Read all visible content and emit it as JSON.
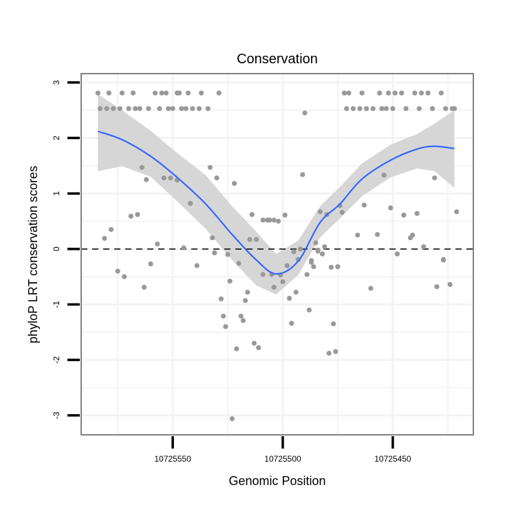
{
  "chart_data": {
    "type": "scatter",
    "title": "Conservation",
    "xlabel": "Genomic Position",
    "ylabel": "phyloP LRT conservation scores",
    "x_reversed": true,
    "xlim": [
      10725591.6,
      10725413.4
    ],
    "ylim": [
      -3.35,
      3.16
    ],
    "x_ticks": [
      10725550,
      10725500,
      10725450
    ],
    "x_tick_labels": [
      "10725550",
      "10725500",
      "10725450"
    ],
    "y_ticks": [
      3,
      2,
      1,
      0,
      -1,
      -2,
      -3
    ],
    "y_tick_labels": [
      "3",
      "2",
      "1",
      "0",
      "-1",
      "-2",
      "-3"
    ],
    "grid": true,
    "reference_line": {
      "y": 0,
      "style": "dashed"
    },
    "colors": {
      "points": "#999999",
      "smooth": "#3366FF",
      "ribbon": "#D6D6D6",
      "panel_border": "#808080",
      "grid": "#F3F3F3"
    },
    "points": [
      [
        10725584,
        2.81
      ],
      [
        10725579,
        2.81
      ],
      [
        10725573,
        2.81
      ],
      [
        10725568,
        2.81
      ],
      [
        10725558,
        2.81
      ],
      [
        10725555,
        2.81
      ],
      [
        10725553,
        2.81
      ],
      [
        10725548,
        2.81
      ],
      [
        10725547,
        2.81
      ],
      [
        10725543,
        2.81
      ],
      [
        10725537,
        2.81
      ],
      [
        10725529,
        2.81
      ],
      [
        10725472,
        2.81
      ],
      [
        10725470,
        2.81
      ],
      [
        10725464,
        2.81
      ],
      [
        10725456,
        2.81
      ],
      [
        10725452,
        2.81
      ],
      [
        10725449,
        2.81
      ],
      [
        10725446,
        2.81
      ],
      [
        10725440,
        2.81
      ],
      [
        10725437,
        2.81
      ],
      [
        10725434,
        2.81
      ],
      [
        10725428,
        2.81
      ],
      [
        10725583,
        2.53
      ],
      [
        10725580,
        2.53
      ],
      [
        10725577,
        2.53
      ],
      [
        10725574,
        2.53
      ],
      [
        10725570,
        2.53
      ],
      [
        10725567,
        2.53
      ],
      [
        10725565,
        2.53
      ],
      [
        10725561,
        2.53
      ],
      [
        10725556,
        2.53
      ],
      [
        10725552,
        2.53
      ],
      [
        10725550,
        2.53
      ],
      [
        10725546,
        2.53
      ],
      [
        10725544,
        2.53
      ],
      [
        10725541,
        2.53
      ],
      [
        10725538,
        2.53
      ],
      [
        10725534,
        2.53
      ],
      [
        10725471,
        2.53
      ],
      [
        10725468,
        2.53
      ],
      [
        10725465,
        2.53
      ],
      [
        10725462,
        2.53
      ],
      [
        10725459,
        2.53
      ],
      [
        10725455,
        2.53
      ],
      [
        10725453,
        2.53
      ],
      [
        10725450,
        2.53
      ],
      [
        10725444,
        2.53
      ],
      [
        10725438,
        2.53
      ],
      [
        10725432,
        2.53
      ],
      [
        10725426,
        2.53
      ],
      [
        10725423,
        2.53
      ],
      [
        10725422,
        2.53
      ],
      [
        10725564,
        1.47
      ],
      [
        10725562,
        1.25
      ],
      [
        10725554,
        1.28
      ],
      [
        10725551,
        1.28
      ],
      [
        10725548,
        1.24
      ],
      [
        10725533,
        1.47
      ],
      [
        10725530,
        1.28
      ],
      [
        10725522,
        1.18
      ],
      [
        10725542,
        0.82
      ],
      [
        10725569,
        0.59
      ],
      [
        10725566,
        0.62
      ],
      [
        10725578,
        0.35
      ],
      [
        10725581,
        0.19
      ],
      [
        10725557,
        0.09
      ],
      [
        10725545,
        0.02
      ],
      [
        10725532,
        0.2
      ],
      [
        10725531,
        -0.07
      ],
      [
        10725525,
        -0.1
      ],
      [
        10725514,
        0.62
      ],
      [
        10725515,
        0.17
      ],
      [
        10725512,
        0.17
      ],
      [
        10725509,
        0.52
      ],
      [
        10725507,
        0.52
      ],
      [
        10725506,
        0.52
      ],
      [
        10725504,
        0.52
      ],
      [
        10725502,
        0.5
      ],
      [
        10725490,
        2.45
      ],
      [
        10725491,
        1.34
      ],
      [
        10725454,
        1.33
      ],
      [
        10725431,
        1.28
      ],
      [
        10725463,
        0.79
      ],
      [
        10725451,
        0.74
      ],
      [
        10725445,
        0.61
      ],
      [
        10725439,
        0.64
      ],
      [
        10725421,
        0.67
      ],
      [
        10725499,
        0.61
      ],
      [
        10725483,
        0.67
      ],
      [
        10725480,
        0.62
      ],
      [
        10725474,
        0.78
      ],
      [
        10725473,
        0.66
      ],
      [
        10725466,
        0.25
      ],
      [
        10725457,
        0.26
      ],
      [
        10725441,
        0.25
      ],
      [
        10725442,
        0.2
      ],
      [
        10725436,
        0.04
      ],
      [
        10725485,
        0.11
      ],
      [
        10725481,
        0.04
      ],
      [
        10725495,
        -0.05
      ],
      [
        10725492,
        0.0
      ],
      [
        10725484,
        -0.04
      ],
      [
        10725482,
        -0.09
      ],
      [
        10725448,
        -0.09
      ],
      [
        10725427,
        -0.19
      ],
      [
        10725493,
        -0.19
      ],
      [
        10725487,
        -0.21
      ],
      [
        10725575,
        -0.4
      ],
      [
        10725572,
        -0.5
      ],
      [
        10725560,
        -0.27
      ],
      [
        10725563,
        -0.69
      ],
      [
        10725539,
        -0.3
      ],
      [
        10725531,
        -0.07
      ],
      [
        10725520,
        -0.26
      ],
      [
        10725524,
        -0.58
      ],
      [
        10725528,
        -0.9
      ],
      [
        10725527,
        -1.21
      ],
      [
        10725526,
        -1.4
      ],
      [
        10725516,
        -0.78
      ],
      [
        10725517,
        -0.93
      ],
      [
        10725519,
        -1.21
      ],
      [
        10725518,
        -1.29
      ],
      [
        10725521,
        -1.8
      ],
      [
        10725513,
        -1.7
      ],
      [
        10725511,
        -1.78
      ],
      [
        10725523,
        -3.06
      ],
      [
        10725509,
        -0.46
      ],
      [
        10725505,
        -0.46
      ],
      [
        10725501,
        -0.47
      ],
      [
        10725504,
        -0.69
      ],
      [
        10725500,
        -0.59
      ],
      [
        10725498,
        -0.3
      ],
      [
        10725495,
        -0.05
      ],
      [
        10725493,
        -0.19
      ],
      [
        10725497,
        -0.89
      ],
      [
        10725494,
        -0.78
      ],
      [
        10725496,
        -1.34
      ],
      [
        10725489,
        -0.46
      ],
      [
        10725487,
        -0.24
      ],
      [
        10725486,
        -0.32
      ],
      [
        10725488,
        -1.1
      ],
      [
        10725484,
        -0.02
      ],
      [
        10725482,
        -0.09
      ],
      [
        10725478,
        -0.33
      ],
      [
        10725475,
        -0.32
      ],
      [
        10725477,
        -1.35
      ],
      [
        10725479,
        -1.88
      ],
      [
        10725476,
        -1.85
      ],
      [
        10725460,
        -0.71
      ],
      [
        10725448,
        -0.09
      ],
      [
        10725430,
        -0.68
      ],
      [
        10725427,
        -0.2
      ],
      [
        10725424,
        -0.64
      ]
    ],
    "smooth": {
      "x": [
        10725584,
        10725573,
        10725560,
        10725548,
        10725535,
        10725523,
        10725512,
        10725503,
        10725493,
        10725483,
        10725474,
        10725464,
        10725451,
        10725439,
        10725431,
        10725422
      ],
      "y": [
        2.12,
        1.97,
        1.67,
        1.29,
        0.81,
        0.26,
        -0.2,
        -0.45,
        -0.22,
        0.48,
        0.81,
        1.26,
        1.6,
        1.8,
        1.85,
        1.81
      ],
      "ymin": [
        1.4,
        1.49,
        1.3,
        0.86,
        0.36,
        -0.2,
        -0.66,
        -0.82,
        -0.47,
        0.21,
        0.55,
        0.95,
        1.29,
        1.45,
        1.4,
        1.1
      ],
      "ymax": [
        2.79,
        2.5,
        2.13,
        1.73,
        1.33,
        0.77,
        0.31,
        -0.09,
        0.15,
        0.77,
        1.12,
        1.54,
        1.88,
        2.07,
        2.26,
        2.5
      ]
    }
  }
}
